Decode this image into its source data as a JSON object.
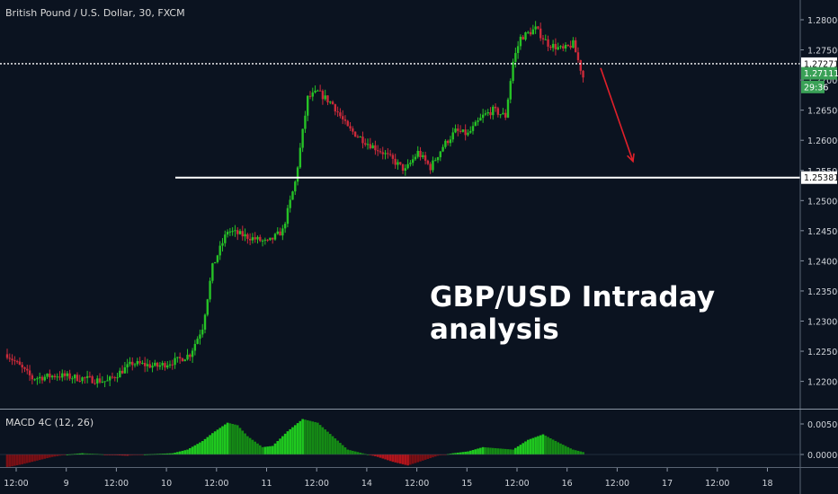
{
  "header": {
    "symbol": "British Pound / U.S. Dollar, 30, FXCM"
  },
  "annotation": {
    "headline": "GBP/USD Intraday analysis"
  },
  "macd": {
    "label": "MACD 4C (12, 26)"
  },
  "colors": {
    "background": "#0b1320",
    "up": "#26c226",
    "down": "#cc2a3a",
    "macd_up": "#1fc81f",
    "macd_down": "#b3141b",
    "arrow": "#e0202a",
    "line_white": "#ffffff"
  },
  "chart_data": [
    {
      "type": "candlestick",
      "title": "British Pound / U.S. Dollar, 30, FXCM",
      "xlabel": "",
      "ylabel": "",
      "x_ticks": [
        "12:00",
        "9",
        "12:00",
        "10",
        "12:00",
        "11",
        "12:00",
        "14",
        "12:00",
        "15",
        "12:00",
        "16",
        "12:00",
        "17",
        "12:00",
        "18"
      ],
      "y_ticks": [
        1.28,
        1.275,
        1.27,
        1.265,
        1.26,
        1.255,
        1.25,
        1.245,
        1.24,
        1.235,
        1.23,
        1.225,
        1.22
      ],
      "ylim": [
        1.2175,
        1.2818
      ],
      "price_labels": [
        {
          "name": "current-price-line",
          "value": 1.27271,
          "text": "1.27271"
        },
        {
          "name": "last-price",
          "value": 1.27111,
          "text": "1.27111"
        },
        {
          "name": "countdown",
          "value": 1.26885,
          "text": "29:36"
        },
        {
          "name": "support-level",
          "value": 1.25381,
          "text": "1.25381"
        }
      ],
      "horizontal_lines": [
        {
          "name": "support-line",
          "value": 1.25381,
          "style": "solid"
        },
        {
          "name": "price-line",
          "value": 1.27271,
          "style": "dotted"
        }
      ],
      "arrow": {
        "from": [
          1.0,
          1.272
        ],
        "to": [
          1.7,
          1.2565
        ],
        "color": "#e0202a",
        "meaning": "projected decline"
      },
      "path_points": [
        [
          0,
          1.2245
        ],
        [
          0.5,
          1.2205
        ],
        [
          1.0,
          1.221
        ],
        [
          1.5,
          1.2205
        ],
        [
          2.0,
          1.22
        ],
        [
          2.5,
          1.223
        ],
        [
          3.0,
          1.2225
        ],
        [
          3.4,
          1.2235
        ],
        [
          3.65,
          1.2245
        ],
        [
          3.9,
          1.229
        ],
        [
          4.1,
          1.239
        ],
        [
          4.4,
          1.245
        ],
        [
          4.8,
          1.244
        ],
        [
          5.2,
          1.243
        ],
        [
          5.5,
          1.245
        ],
        [
          5.75,
          1.253
        ],
        [
          6.0,
          1.267
        ],
        [
          6.2,
          1.268
        ],
        [
          6.5,
          1.266
        ],
        [
          6.8,
          1.262
        ],
        [
          7.2,
          1.2595
        ],
        [
          7.5,
          1.258
        ],
        [
          7.95,
          1.255
        ],
        [
          8.2,
          1.258
        ],
        [
          8.45,
          1.2555
        ],
        [
          8.7,
          1.259
        ],
        [
          8.95,
          1.2615
        ],
        [
          9.2,
          1.261
        ],
        [
          9.5,
          1.264
        ],
        [
          9.7,
          1.265
        ],
        [
          9.95,
          1.264
        ],
        [
          10.1,
          1.273
        ],
        [
          10.25,
          1.277
        ],
        [
          10.55,
          1.2785
        ],
        [
          10.8,
          1.276
        ],
        [
          11.1,
          1.275
        ],
        [
          11.3,
          1.276
        ],
        [
          11.5,
          1.2705
        ]
      ],
      "series": [
        {
          "name": "",
          "role": "macd-histogram",
          "x": [
            0,
            0.3,
            0.6,
            0.9,
            1.2,
            1.5,
            1.8,
            2.1,
            2.4,
            2.7,
            3.0,
            3.3,
            3.6,
            3.9,
            4.1,
            4.4,
            4.6,
            4.8,
            5.1,
            5.3,
            5.6,
            5.9,
            6.2,
            6.5,
            6.8,
            7.1,
            7.4,
            7.7,
            8.0,
            8.3,
            8.6,
            8.9,
            9.2,
            9.5,
            9.8,
            10.1,
            10.4,
            10.7,
            11.0,
            11.3,
            11.5
          ],
          "values": [
            -0.0021,
            -0.0016,
            -0.001,
            -0.0004,
            0.0,
            0.0002,
            0.0001,
            -0.0001,
            -0.0002,
            0.0,
            0.0001,
            0.0002,
            0.0008,
            0.0022,
            0.0035,
            0.0052,
            0.0048,
            0.003,
            0.0012,
            0.0014,
            0.0038,
            0.0058,
            0.0052,
            0.003,
            0.0008,
            0.0002,
            -0.0004,
            -0.0012,
            -0.0018,
            -0.001,
            -0.0002,
            0.0002,
            0.0005,
            0.0012,
            0.001,
            0.0008,
            0.0024,
            0.0033,
            0.002,
            0.0008,
            0.0004
          ]
        }
      ],
      "macd_y_ticks": [
        0.005,
        0.0
      ],
      "macd_y_tick_labels": [
        "0.00500",
        "0.00000"
      ],
      "macd_ylim": [
        -0.0028,
        0.0068
      ]
    }
  ]
}
